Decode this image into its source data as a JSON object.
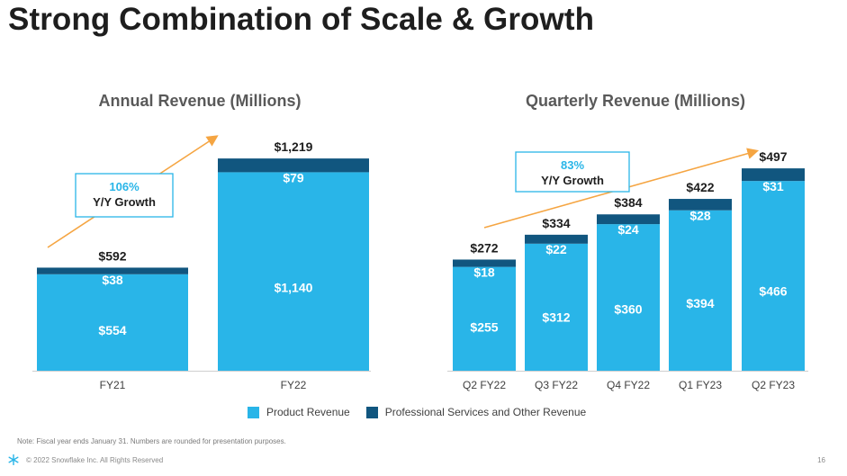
{
  "slide": {
    "title": "Strong Combination of Scale & Growth",
    "note": "Note: Fiscal year ends January 31. Numbers are rounded for presentation purposes.",
    "footer": "© 2022 Snowflake Inc. All Rights Reserved",
    "page_number": "16",
    "logo_icon": "snowflake-icon"
  },
  "legend": {
    "product": "Product Revenue",
    "services": "Professional Services and Other Revenue"
  },
  "colors": {
    "product": "#29b5e8",
    "services": "#11567f",
    "arrow": "#f5a542",
    "growth_pct": "#29b5e8",
    "title": "#1e1e1e",
    "subtitle": "#595959"
  },
  "chart_data": [
    {
      "type": "bar",
      "stacked": true,
      "title": "Annual Revenue (Millions)",
      "categories": [
        "FY21",
        "FY22"
      ],
      "series": [
        {
          "name": "Product Revenue",
          "values": [
            554,
            1140
          ],
          "labels": [
            "$554",
            "$1,140"
          ]
        },
        {
          "name": "Professional Services and Other Revenue",
          "values": [
            38,
            79
          ],
          "labels": [
            "$38",
            "$79"
          ]
        }
      ],
      "totals": [
        592,
        1219
      ],
      "total_labels": [
        "$592",
        "$1,219"
      ],
      "annotation": {
        "percent": "106%",
        "text": "Y/Y Growth"
      },
      "legend_position": "bottom"
    },
    {
      "type": "bar",
      "stacked": true,
      "title": "Quarterly Revenue (Millions)",
      "categories": [
        "Q2 FY22",
        "Q3 FY22",
        "Q4 FY22",
        "Q1 FY23",
        "Q2 FY23"
      ],
      "series": [
        {
          "name": "Product Revenue",
          "values": [
            255,
            312,
            360,
            394,
            466
          ],
          "labels": [
            "$255",
            "$312",
            "$360",
            "$394",
            "$466"
          ]
        },
        {
          "name": "Professional Services and Other Revenue",
          "values": [
            18,
            22,
            24,
            28,
            31
          ],
          "labels": [
            "$18",
            "$22",
            "$24",
            "$28",
            "$31"
          ]
        }
      ],
      "totals": [
        272,
        334,
        384,
        422,
        497
      ],
      "total_labels": [
        "$272",
        "$334",
        "$384",
        "$422",
        "$497"
      ],
      "annotation": {
        "percent": "83%",
        "text": "Y/Y Growth"
      },
      "legend_position": "bottom"
    }
  ]
}
